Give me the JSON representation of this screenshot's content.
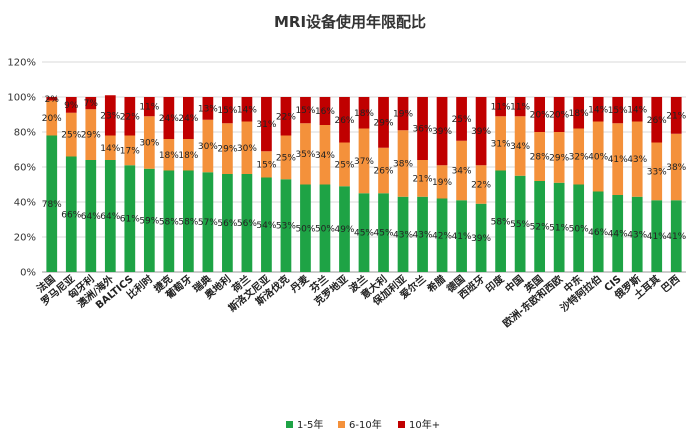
{
  "chart_data": {
    "type": "bar",
    "stacked": true,
    "title": "MRI设备使用年限配比",
    "categories": [
      "法国",
      "罗马尼亚",
      "匈牙利",
      "澳洲/海外",
      "BALTICS",
      "比利时",
      "捷克",
      "葡萄牙",
      "瑞典",
      "奥地利",
      "荷兰",
      "斯洛文尼亚",
      "斯洛伐克",
      "丹麦",
      "芬兰",
      "克罗地亚",
      "波兰",
      "意大利",
      "保加利亚",
      "爱尔兰",
      "希腊",
      "德国",
      "西班牙",
      "印度",
      "中国",
      "英国",
      "欧洲-东欧和西欧",
      "中东",
      "沙特阿拉伯",
      "CIS",
      "俄罗斯",
      "土耳其",
      "巴西"
    ],
    "series": [
      {
        "name": "1-5年",
        "color": "#1ea345",
        "values": [
          78,
          66,
          64,
          64,
          61,
          59,
          58,
          58,
          57,
          56,
          56,
          54,
          53,
          50,
          50,
          49,
          45,
          45,
          43,
          43,
          42,
          41,
          39,
          58,
          55,
          52,
          51,
          50,
          46,
          44,
          43,
          41,
          41
        ],
        "labels": [
          "78%",
          "66%",
          "64%",
          "64%",
          "61%",
          "59%",
          "58%",
          "58%",
          "57%",
          "56%",
          "56%",
          "54%",
          "53%",
          "50%",
          "50%",
          "49%",
          "45%",
          "45%",
          "43%",
          "43%",
          "42%",
          "41%",
          "39%",
          "58%",
          "55%",
          "52%",
          "51%",
          "50%",
          "46%",
          "44%",
          "43%",
          "41%",
          "41%"
        ]
      },
      {
        "name": "6-10年",
        "color": "#f4913b",
        "values": [
          20,
          25,
          29,
          14,
          17,
          30,
          18,
          18,
          30,
          29,
          30,
          15,
          25,
          35,
          34,
          25,
          37,
          26,
          38,
          21,
          19,
          34,
          22,
          31,
          34,
          28,
          29,
          32,
          40,
          41,
          43,
          33,
          38
        ],
        "labels": [
          "20%",
          "25%",
          "29%",
          "14%",
          "17%",
          "30%",
          "18%",
          "18%",
          "30%",
          "29%",
          "30%",
          "15%",
          "25%",
          "35%",
          "34%",
          "25%",
          "37%",
          "26%",
          "38%",
          "21%",
          "19%",
          "34%",
          "22%",
          "31%",
          "34%",
          "28%",
          "29%",
          "32%",
          "40%",
          "41%",
          "43%",
          "33%",
          "38%"
        ]
      },
      {
        "name": "10年+",
        "color": "#c00000",
        "values": [
          2,
          9,
          7,
          23,
          22,
          11,
          24,
          24,
          13,
          15,
          14,
          31,
          22,
          15,
          16,
          26,
          18,
          29,
          19,
          36,
          39,
          25,
          39,
          11,
          11,
          20,
          20,
          18,
          14,
          15,
          14,
          26,
          21
        ],
        "labels": [
          "2%",
          "9%",
          "7%",
          "23%",
          "22%",
          "11%",
          "24%",
          "24%",
          "13%",
          "15%",
          "14%",
          "31%",
          "22%",
          "15%",
          "16%",
          "26%",
          "18%",
          "29%",
          "19%",
          "36%",
          "39%",
          "25%",
          "39%",
          "11%",
          "11%",
          "20%",
          "20%",
          "18%",
          "14%",
          "15%",
          "14%",
          "26%",
          "21%"
        ]
      }
    ],
    "y_ticks": [
      "0%",
      "20%",
      "40%",
      "60%",
      "80%",
      "100%",
      "120%"
    ],
    "ylim": [
      0,
      120
    ],
    "grid": true,
    "legend": "bottom"
  }
}
